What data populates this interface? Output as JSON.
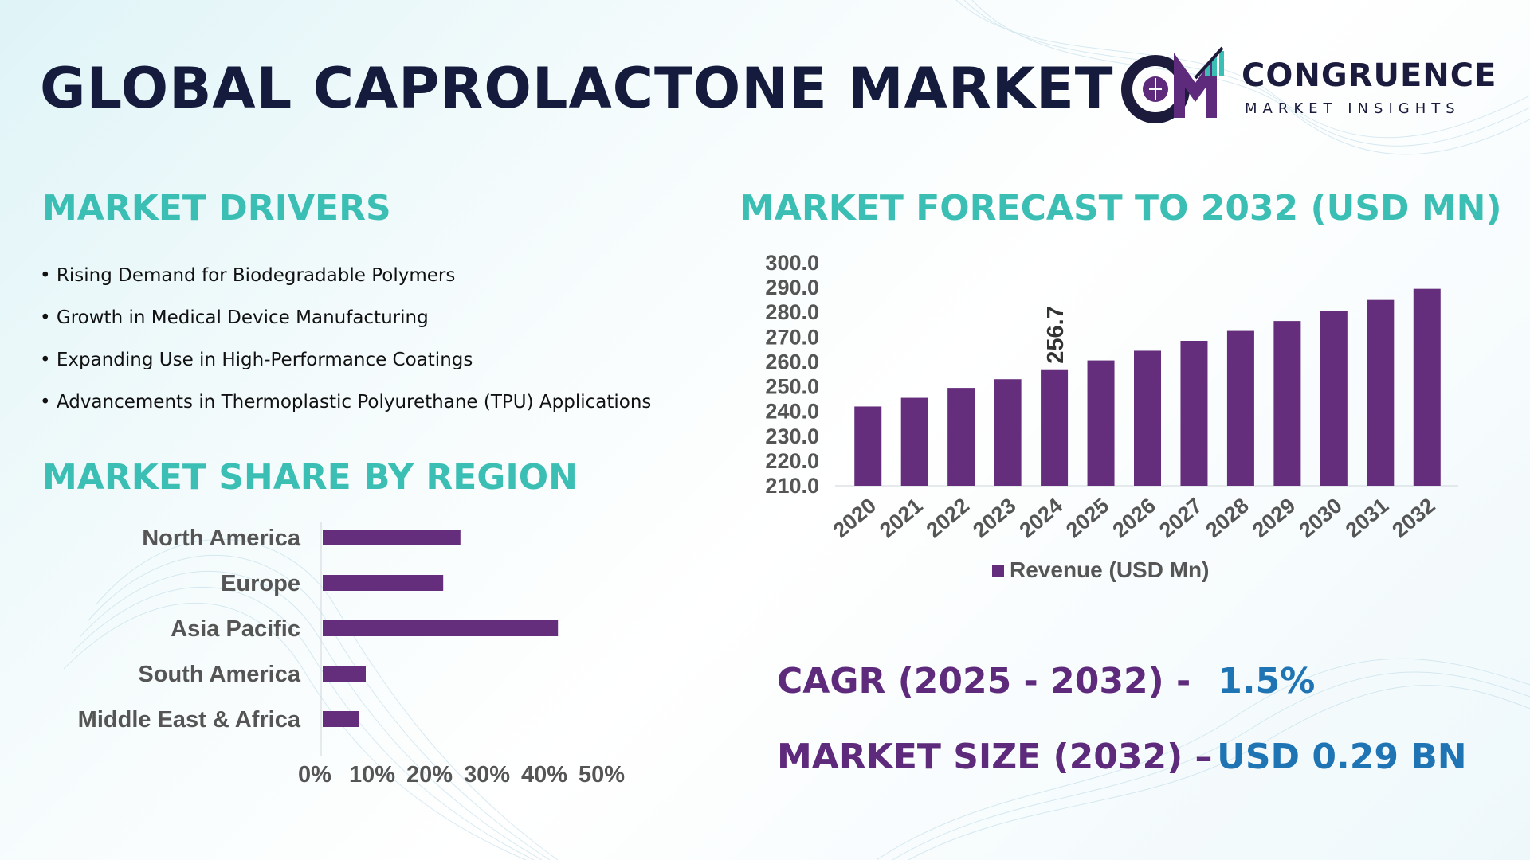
{
  "title": "GLOBAL CAPROLACTONE MARKET",
  "logo": {
    "brand": "CONGRUENCE",
    "tagline": "MARKET INSIGHTS",
    "monogram": "CM"
  },
  "drivers": {
    "heading": "MARKET DRIVERS",
    "items": [
      "Rising Demand for Biodegradable Polymers",
      "Growth in Medical Device Manufacturing",
      "Expanding Use in High-Performance Coatings",
      "Advancements in Thermoplastic Polyurethane (TPU) Applications"
    ]
  },
  "region": {
    "heading": "MARKET SHARE BY REGION"
  },
  "forecast": {
    "heading": "MARKET FORECAST TO 2032 (USD MN)"
  },
  "stats": {
    "cagr_label": "CAGR (2025 - 2032) -",
    "cagr_value": "1.5%",
    "size_label": "MARKET SIZE (2032) –",
    "size_value": "USD 0.29 BN"
  },
  "colors": {
    "bar": "#652e7c",
    "heading": "#3bbfb4",
    "stat_label": "#5d2a7c",
    "stat_value": "#1f74b4",
    "title": "#141b3c"
  },
  "chart_data": [
    {
      "type": "bar",
      "title": "MARKET FORECAST TO 2032 (USD MN)",
      "categories": [
        "2020",
        "2021",
        "2022",
        "2023",
        "2024",
        "2025",
        "2026",
        "2027",
        "2028",
        "2029",
        "2030",
        "2031",
        "2032"
      ],
      "series": [
        {
          "name": "Revenue (USD Mn)",
          "values": [
            242.0,
            245.5,
            249.5,
            253.0,
            256.7,
            260.6,
            264.5,
            268.5,
            272.5,
            276.5,
            280.7,
            285.0,
            289.5
          ]
        }
      ],
      "data_labels": [
        {
          "category": "2024",
          "text": "256.7"
        }
      ],
      "y_ticks": [
        "300.0",
        "290.0",
        "280.0",
        "270.0",
        "260.0",
        "250.0",
        "240.0",
        "230.0",
        "220.0",
        "210.0"
      ],
      "ylim": [
        210,
        300
      ],
      "legend": "bottom",
      "grid": false
    },
    {
      "type": "bar",
      "orientation": "horizontal",
      "title": "MARKET SHARE BY REGION",
      "categories": [
        "North America",
        "Europe",
        "Asia Pacific",
        "South America",
        "Middle East & Africa"
      ],
      "values": [
        24,
        21,
        41,
        7.5,
        6.3
      ],
      "x_ticks": [
        "0%",
        "10%",
        "20%",
        "30%",
        "40%",
        "50%"
      ],
      "xlim": [
        0,
        50
      ],
      "grid": false
    }
  ]
}
